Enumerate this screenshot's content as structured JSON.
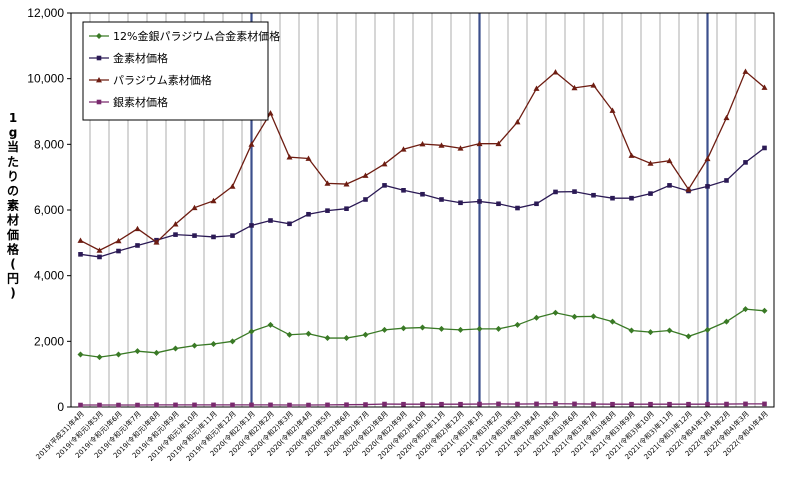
{
  "chart_data": {
    "type": "line",
    "title": "",
    "xlabel": "",
    "ylabel": "1g当たりの素材価格(円)",
    "ylim": [
      0,
      12000
    ],
    "yticks": [
      "0",
      "2,000",
      "4,000",
      "6,000",
      "8,000",
      "10,000",
      "12,000"
    ],
    "grid": "vertical",
    "legend_position": "top-left",
    "categories": [
      "2019(平成31)年4月",
      "2019(令和元)年5月",
      "2019(令和元)年6月",
      "2019(令和元)年7月",
      "2019(令和元)年8月",
      "2019(令和元)年9月",
      "2019(令和元)年10月",
      "2019(令和元)年11月",
      "2019(令和元)年12月",
      "2020(令和2)年1月",
      "2020(令和2)年2月",
      "2020(令和2)年3月",
      "2020(令和2)年4月",
      "2020(令和2)年5月",
      "2020(令和2)年6月",
      "2020(令和2)年7月",
      "2020(令和2)年8月",
      "2020(令和2)年9月",
      "2020(令和2)年10月",
      "2020(令和2)年11月",
      "2020(令和2)年12月",
      "2021(令和3)年1月",
      "2021(令和3)年2月",
      "2021(令和3)年3月",
      "2021(令和3)年4月",
      "2021(令和3)年5月",
      "2021(令和3)年6月",
      "2021(令和3)年7月",
      "2021(令和3)年8月",
      "2021(令和3)年9月",
      "2021(令和3)年10月",
      "2021(令和3)年11月",
      "2021(令和3)年12月",
      "2022(令和4)年1月",
      "2022(令和4)年2月",
      "2022(令和4)年3月",
      "2022(令和4)年4月"
    ],
    "highlight_categories": [
      "2020(令和2)年1月",
      "2021(令和3)年1月",
      "2022(令和4)年1月"
    ],
    "series": [
      {
        "name": "12%金銀パラジウム合金素材価格",
        "color": "#3a7a26",
        "marker": "diamond",
        "values": [
          1600,
          1520,
          1600,
          1700,
          1650,
          1780,
          1870,
          1920,
          2000,
          2300,
          2500,
          2200,
          2230,
          2100,
          2100,
          2200,
          2350,
          2400,
          2420,
          2380,
          2350,
          2380,
          2380,
          2500,
          2720,
          2870,
          2750,
          2760,
          2600,
          2330,
          2280,
          2330,
          2150,
          2350,
          2600,
          2980,
          2930
        ]
      },
      {
        "name": "金素材価格",
        "color": "#2b1a55",
        "marker": "square",
        "values": [
          4650,
          4570,
          4750,
          4920,
          5080,
          5250,
          5220,
          5180,
          5220,
          5530,
          5680,
          5580,
          5870,
          5980,
          6040,
          6320,
          6750,
          6600,
          6480,
          6320,
          6220,
          6260,
          6190,
          6060,
          6190,
          6550,
          6560,
          6450,
          6360,
          6360,
          6500,
          6750,
          6580,
          6720,
          6900,
          7450,
          7890
        ]
      },
      {
        "name": "パラジウム素材価格",
        "color": "#6e1d12",
        "marker": "triangle",
        "values": [
          5070,
          4770,
          5060,
          5430,
          5020,
          5570,
          6070,
          6280,
          6720,
          8000,
          8950,
          7610,
          7570,
          6810,
          6790,
          7050,
          7400,
          7850,
          8010,
          7970,
          7880,
          8020,
          8020,
          8680,
          9700,
          10200,
          9720,
          9800,
          9030,
          7660,
          7420,
          7500,
          6630,
          7560,
          8810,
          10220,
          9730
        ]
      },
      {
        "name": "銀素材価格",
        "color": "#7a2a6e",
        "marker": "square",
        "values": [
          60,
          60,
          60,
          60,
          65,
          65,
          65,
          65,
          65,
          65,
          65,
          60,
          60,
          65,
          70,
          75,
          90,
          85,
          85,
          85,
          85,
          90,
          95,
          90,
          95,
          100,
          95,
          90,
          85,
          85,
          85,
          85,
          85,
          85,
          90,
          95,
          95
        ]
      }
    ]
  }
}
